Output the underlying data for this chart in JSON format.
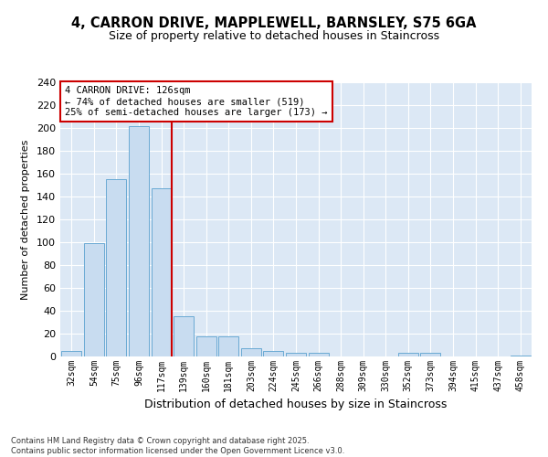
{
  "title_line1": "4, CARRON DRIVE, MAPPLEWELL, BARNSLEY, S75 6GA",
  "title_line2": "Size of property relative to detached houses in Staincross",
  "xlabel": "Distribution of detached houses by size in Staincross",
  "ylabel": "Number of detached properties",
  "categories": [
    "32sqm",
    "54sqm",
    "75sqm",
    "96sqm",
    "117sqm",
    "139sqm",
    "160sqm",
    "181sqm",
    "203sqm",
    "224sqm",
    "245sqm",
    "266sqm",
    "288sqm",
    "309sqm",
    "330sqm",
    "352sqm",
    "373sqm",
    "394sqm",
    "415sqm",
    "437sqm",
    "458sqm"
  ],
  "values": [
    5,
    99,
    155,
    202,
    147,
    35,
    18,
    18,
    7,
    5,
    3,
    3,
    0,
    0,
    0,
    3,
    3,
    0,
    0,
    0,
    1
  ],
  "bar_color": "#c8dcf0",
  "bar_edge_color": "#6aaad4",
  "vline_color": "#cc0000",
  "vline_x_index": 4,
  "annotation_text": "4 CARRON DRIVE: 126sqm\n← 74% of detached houses are smaller (519)\n25% of semi-detached houses are larger (173) →",
  "annotation_box_facecolor": "#ffffff",
  "annotation_box_edgecolor": "#cc0000",
  "fig_facecolor": "#ffffff",
  "plot_facecolor": "#dce8f5",
  "grid_color": "#ffffff",
  "footer_line1": "Contains HM Land Registry data © Crown copyright and database right 2025.",
  "footer_line2": "Contains public sector information licensed under the Open Government Licence v3.0.",
  "ylim": [
    0,
    240
  ],
  "yticks": [
    0,
    20,
    40,
    60,
    80,
    100,
    120,
    140,
    160,
    180,
    200,
    220,
    240
  ]
}
